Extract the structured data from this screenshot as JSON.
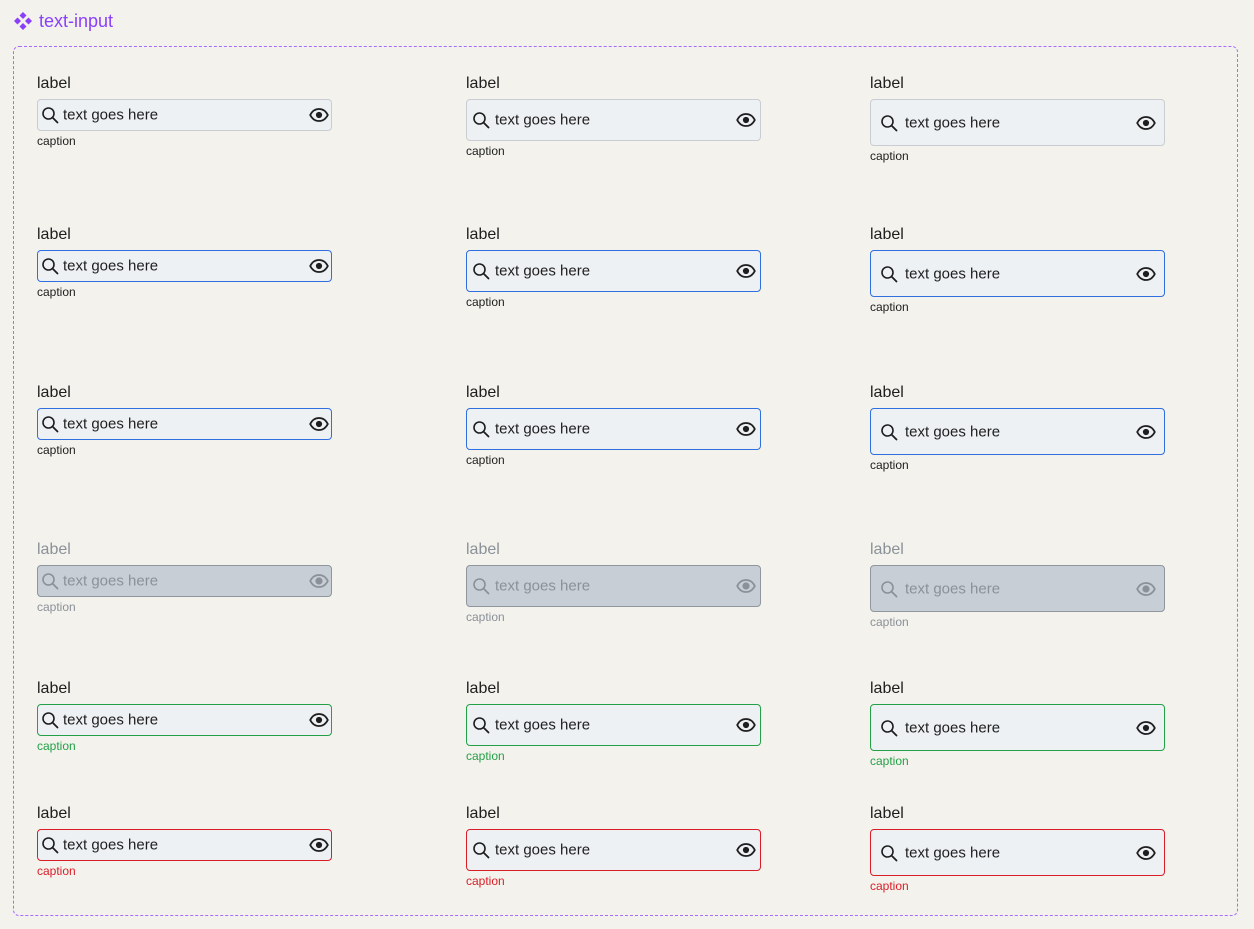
{
  "component": {
    "name": "text-input",
    "icon": "component-diamond-icon",
    "accent": "#8a3ffc"
  },
  "colors": {
    "default_border": "#c9cdd2",
    "focus_border": "#2f6fe0",
    "disabled_bg": "#c8ced6",
    "success": "#24a148",
    "error": "#da1e28"
  },
  "rows": [
    {
      "state": "default",
      "cells": [
        {
          "size": "sm",
          "label": "label",
          "value": "text goes here",
          "caption": "caption"
        },
        {
          "size": "md",
          "label": "label",
          "value": "text goes here",
          "caption": "caption"
        },
        {
          "size": "lg",
          "label": "label",
          "value": "text goes here",
          "caption": "caption"
        }
      ]
    },
    {
      "state": "focus",
      "cells": [
        {
          "size": "sm",
          "label": "label",
          "value": "text goes here",
          "caption": "caption"
        },
        {
          "size": "md",
          "label": "label",
          "value": "text goes here",
          "caption": "caption"
        },
        {
          "size": "lg",
          "label": "label",
          "value": "text goes here",
          "caption": "caption"
        }
      ]
    },
    {
      "state": "active",
      "cells": [
        {
          "size": "sm",
          "label": "label",
          "value": "text goes here",
          "caption": "caption"
        },
        {
          "size": "md",
          "label": "label",
          "value": "text goes here",
          "caption": "caption"
        },
        {
          "size": "lg",
          "label": "label",
          "value": "text goes here",
          "caption": "caption"
        }
      ]
    },
    {
      "state": "disabled",
      "cells": [
        {
          "size": "sm",
          "label": "label",
          "value": "text goes here",
          "caption": "caption"
        },
        {
          "size": "md",
          "label": "label",
          "value": "text goes here",
          "caption": "caption"
        },
        {
          "size": "lg",
          "label": "label",
          "value": "text goes here",
          "caption": "caption"
        }
      ]
    },
    {
      "state": "success",
      "cells": [
        {
          "size": "sm",
          "label": "label",
          "value": "text goes here",
          "caption": "caption"
        },
        {
          "size": "md",
          "label": "label",
          "value": "text goes here",
          "caption": "caption"
        },
        {
          "size": "lg",
          "label": "label",
          "value": "text goes here",
          "caption": "caption"
        }
      ]
    },
    {
      "state": "error",
      "cells": [
        {
          "size": "sm",
          "label": "label",
          "value": "text goes here",
          "caption": "caption"
        },
        {
          "size": "md",
          "label": "label",
          "value": "text goes here",
          "caption": "caption"
        },
        {
          "size": "lg",
          "label": "label",
          "value": "text goes here",
          "caption": "caption"
        }
      ]
    }
  ],
  "icons": {
    "leading": "search-icon",
    "trailing": "eye-icon"
  }
}
